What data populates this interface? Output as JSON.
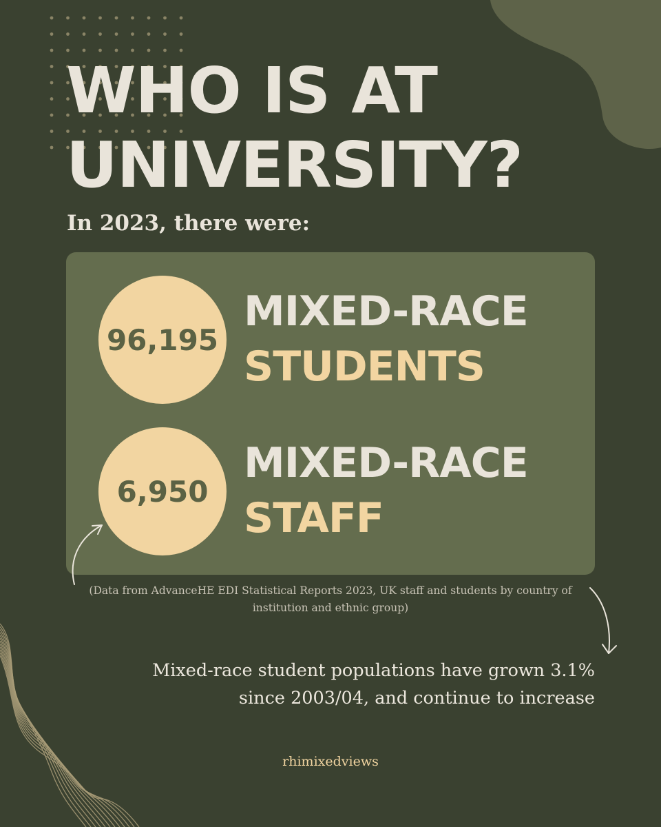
{
  "title": {
    "line1": "WHO IS AT",
    "line2": "UNIVERSITY?"
  },
  "intro": "In 2023, there were:",
  "stats": [
    {
      "value": "96,195",
      "label_line1": "MIXED-RACE",
      "label_line2": "STUDENTS"
    },
    {
      "value": "6,950",
      "label_line1": "MIXED-RACE",
      "label_line2": "STAFF"
    }
  ],
  "source_note": "(Data from AdvanceHE EDI Statistical Reports 2023, UK staff and students by country of institution and ethnic group)",
  "growth_note": {
    "line1": "Mixed-race student populations have grown 3.1%",
    "line2": "since 2003/04, and continue to increase"
  },
  "handle": "rhimixedviews",
  "colors": {
    "background": "#3a4130",
    "panel": "#646d4e",
    "accent_cream": "#f2d5a1",
    "text_light": "#e9e4da",
    "blob": "#5e6349",
    "wave_lines": "#a99c78"
  },
  "decorations": {
    "corner_blob": "organic-blob-shape",
    "dot_grid": "dot-grid-pattern",
    "wave_lines": "wavy-contour-lines",
    "arrows": [
      "curved-arrow-up-icon",
      "curved-arrow-down-icon"
    ]
  }
}
